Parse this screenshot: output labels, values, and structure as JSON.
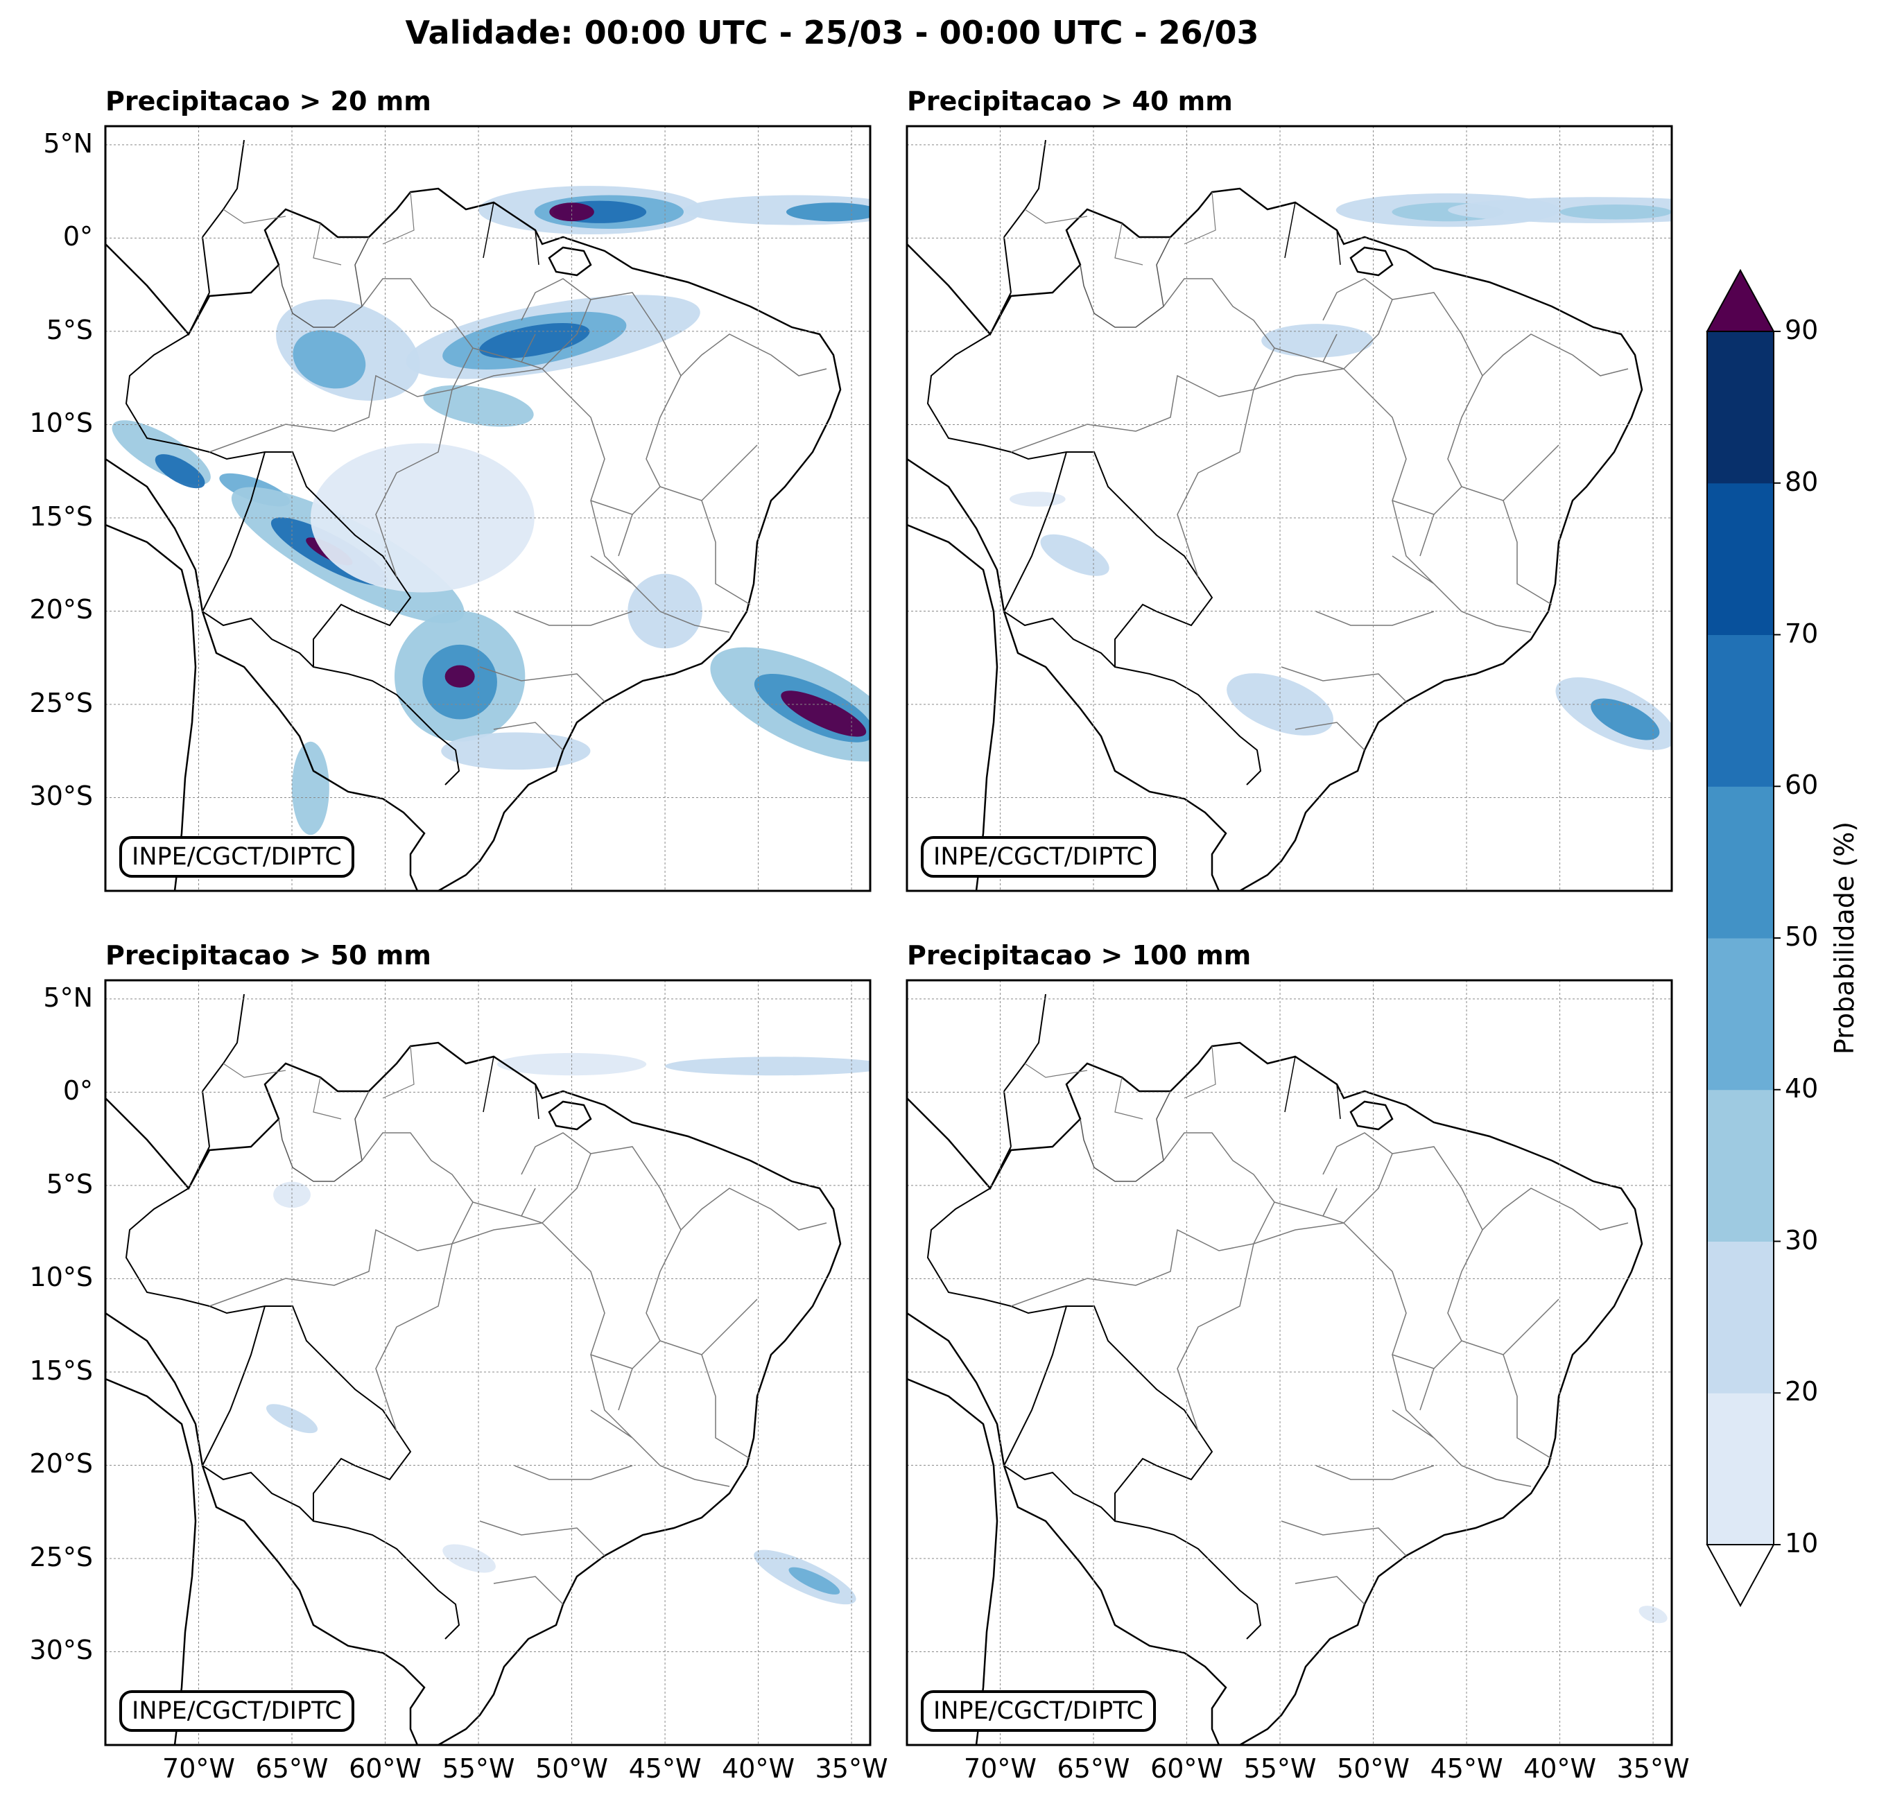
{
  "title": "Validade: 00:00 UTC - 25/03 - 00:00 UTC - 26/03",
  "panels": [
    {
      "title": "Precipitacao > 20 mm",
      "watermark": "INPE/CGCT/DIPTC"
    },
    {
      "title": "Precipitacao > 40 mm",
      "watermark": "INPE/CGCT/DIPTC"
    },
    {
      "title": "Precipitacao > 50 mm",
      "watermark": "INPE/CGCT/DIPTC"
    },
    {
      "title": "Precipitacao > 100 mm",
      "watermark": "INPE/CGCT/DIPTC"
    }
  ],
  "lat_ticks": [
    "5°N",
    "0°",
    "5°S",
    "10°S",
    "15°S",
    "20°S",
    "25°S",
    "30°S"
  ],
  "lon_ticks": [
    "70°W",
    "65°W",
    "60°W",
    "55°W",
    "50°W",
    "45°W",
    "40°W",
    "35°W"
  ],
  "colorbar": {
    "label": "Probabilidade (%)",
    "ticks": [
      "10",
      "20",
      "30",
      "40",
      "50",
      "60",
      "70",
      "80",
      "90"
    ],
    "colors": [
      "#dee9f6",
      "#c6dbef",
      "#9ecae1",
      "#6baed6",
      "#4292c6",
      "#2171b5",
      "#08519c",
      "#08306b"
    ],
    "over_color": "#54004f",
    "under_color": "#ffffff"
  }
}
